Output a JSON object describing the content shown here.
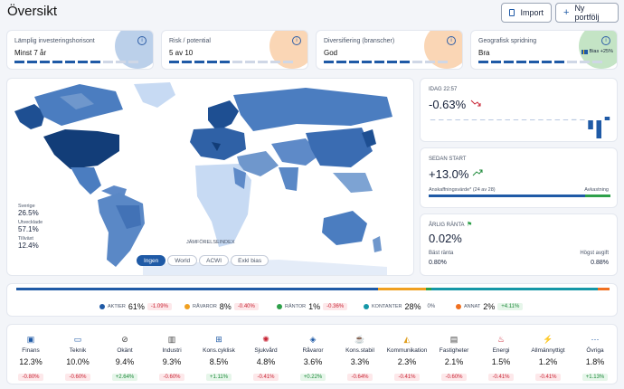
{
  "header": {
    "title": "Översikt",
    "import_label": "Import",
    "new_portfolio_label": "Ny portfölj"
  },
  "kpis": [
    {
      "label": "Lämplig investeringshorisont",
      "value": "Minst 7 år",
      "level": 7,
      "deco_color": "#3b78c4"
    },
    {
      "label": "Risk / potential",
      "value": "5 av 10",
      "level": 5,
      "deco_color": "#f08a2a"
    },
    {
      "label": "Diversifiering (branscher)",
      "value": "God",
      "level": 7,
      "deco_color": "#f08a2a"
    },
    {
      "label": "Geografisk spridning",
      "value": "Bra",
      "level": 7,
      "deco_color": "#56b25a",
      "bias": "Bias +25%"
    }
  ],
  "map": {
    "stats": [
      {
        "label": "Sverige",
        "value": "26.5%"
      },
      {
        "label": "Utvecklade",
        "value": "57.1%"
      },
      {
        "label": "Tillväxt",
        "value": "12.4%"
      }
    ],
    "compare_label": "JÄMFÖRELSEINDEX",
    "toggles": [
      "Ingen",
      "World",
      "ACWI",
      "Exkl bias"
    ],
    "active_toggle": 0
  },
  "today": {
    "label": "IDAG 22:57",
    "value": "-0.63%",
    "trend": "down",
    "bars": [
      0.02,
      0.01,
      0.01,
      0.02,
      0.02,
      0.01,
      0.03,
      0.02,
      0.02,
      0.04,
      0.02,
      0.03,
      0.02,
      0.05,
      0.03,
      0.02,
      0.03,
      0.06,
      0.04,
      -0.5,
      -1.0,
      0.2
    ]
  },
  "since_start": {
    "label": "SEDAN START",
    "value": "+13.0%",
    "trend": "up",
    "left_label": "Anskaffningsvärde* (24 av 28)",
    "right_label": "Avkastning",
    "split": 0.86
  },
  "annual": {
    "label": "ÅRLIG RÄNTA",
    "value": "0.02%",
    "left_label": "Bäst ränta",
    "left_value": "0.80%",
    "right_label": "Högst avgift",
    "right_value": "0.88%"
  },
  "allocation": {
    "bar": [
      {
        "color": "#1f5aa6",
        "pct": 61
      },
      {
        "color": "#f0a020",
        "pct": 8
      },
      {
        "color": "#2ea04a",
        "pct": 1
      },
      {
        "color": "#1597a7",
        "pct": 28
      },
      {
        "color": "#f07020",
        "pct": 2
      }
    ],
    "legend": [
      {
        "name": "AKTIER",
        "pct": "61%",
        "change": "-1.09%",
        "sign": "neg",
        "color": "#1f5aa6"
      },
      {
        "name": "RÅVAROR",
        "pct": "8%",
        "change": "-0.40%",
        "sign": "neg",
        "color": "#f0a020"
      },
      {
        "name": "RÄNTOR",
        "pct": "1%",
        "change": "-0.36%",
        "sign": "neg",
        "color": "#2ea04a"
      },
      {
        "name": "KONTANTER",
        "pct": "28%",
        "change": "0%",
        "sign": "zero",
        "color": "#1597a7"
      },
      {
        "name": "ANNAT",
        "pct": "2%",
        "change": "+4.11%",
        "sign": "pos",
        "color": "#f07020"
      }
    ]
  },
  "sectors": [
    {
      "name": "Finans",
      "pct": "12.3%",
      "change": "-0.80%",
      "sign": "neg",
      "icon": "bank-icon",
      "glyph": "▣",
      "color": "#1f5aa6"
    },
    {
      "name": "Teknik",
      "pct": "10.0%",
      "change": "-0.60%",
      "sign": "neg",
      "icon": "monitor-icon",
      "glyph": "▭",
      "color": "#1f5aa6"
    },
    {
      "name": "Okänt",
      "pct": "9.4%",
      "change": "+2.64%",
      "sign": "pos",
      "icon": "unknown-icon",
      "glyph": "⊘",
      "color": "#444"
    },
    {
      "name": "Industri",
      "pct": "9.3%",
      "change": "-0.60%",
      "sign": "neg",
      "icon": "factory-icon",
      "glyph": "▥",
      "color": "#444"
    },
    {
      "name": "Kons.cyklisk",
      "pct": "8.5%",
      "change": "+1.11%",
      "sign": "pos",
      "icon": "cart-icon",
      "glyph": "⊞",
      "color": "#1f5aa6"
    },
    {
      "name": "Sjukvård",
      "pct": "4.8%",
      "change": "-0.41%",
      "sign": "neg",
      "icon": "health-icon",
      "glyph": "✺",
      "color": "#c82333"
    },
    {
      "name": "Råvaror",
      "pct": "3.6%",
      "change": "+0.22%",
      "sign": "pos",
      "icon": "commodity-icon",
      "glyph": "◈",
      "color": "#1f5aa6"
    },
    {
      "name": "Kons.stabil",
      "pct": "3.3%",
      "change": "-0.64%",
      "sign": "neg",
      "icon": "cup-icon",
      "glyph": "☕",
      "color": "#1f5aa6"
    },
    {
      "name": "Kommunikation",
      "pct": "2.3%",
      "change": "-0.41%",
      "sign": "neg",
      "icon": "megaphone-icon",
      "glyph": "◭",
      "color": "#e0a020"
    },
    {
      "name": "Fastigheter",
      "pct": "2.1%",
      "change": "-0.60%",
      "sign": "neg",
      "icon": "building-icon",
      "glyph": "▤",
      "color": "#444"
    },
    {
      "name": "Energi",
      "pct": "1.5%",
      "change": "-0.41%",
      "sign": "neg",
      "icon": "flame-icon",
      "glyph": "♨",
      "color": "#c82333"
    },
    {
      "name": "Allmännyttigt",
      "pct": "1.2%",
      "change": "-0.41%",
      "sign": "neg",
      "icon": "bolt-icon",
      "glyph": "⚡",
      "color": "#e0a020"
    },
    {
      "name": "Övriga",
      "pct": "1.8%",
      "change": "+1.13%",
      "sign": "pos",
      "icon": "more-icon",
      "glyph": "⋯",
      "color": "#1f5aa6"
    }
  ]
}
